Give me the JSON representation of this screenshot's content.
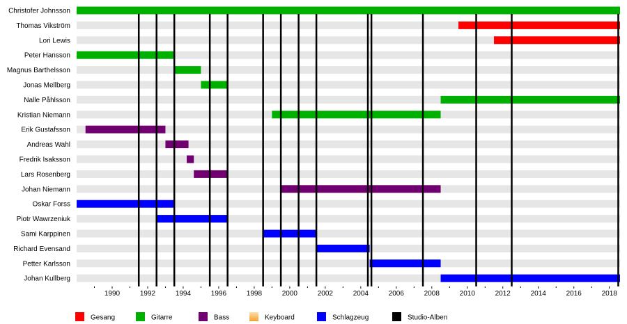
{
  "chart_data": {
    "type": "timeline",
    "xlim": [
      1988.0,
      2018.6
    ],
    "x_ticks": [
      "1990",
      "1992",
      "1994",
      "1996",
      "1998",
      "2000",
      "2002",
      "2004",
      "2006",
      "2008",
      "2010",
      "2012",
      "2014",
      "2016",
      "2018"
    ],
    "roles": [
      {
        "key": "gesang",
        "label": "Gesang",
        "color": "#ff0000"
      },
      {
        "key": "gitarre",
        "label": "Gitarre",
        "color": "#00b000"
      },
      {
        "key": "bass",
        "label": "Bass",
        "color": "#700070"
      },
      {
        "key": "keyboard",
        "label": "Keyboard",
        "color": "#f4a030"
      },
      {
        "key": "schlagzeug",
        "label": "Schlagzeug",
        "color": "#0000ff"
      },
      {
        "key": "studio_alben",
        "label": "Studio-Alben",
        "color": "#000000"
      }
    ],
    "members": [
      {
        "name": "Christofer Johnsson",
        "periods": [
          {
            "role": "gitarre",
            "start": 1988.0,
            "end": 2018.6
          }
        ]
      },
      {
        "name": "Thomas Vikström",
        "periods": [
          {
            "role": "gesang",
            "start": 2009.5,
            "end": 2018.6
          }
        ]
      },
      {
        "name": "Lori Lewis",
        "periods": [
          {
            "role": "gesang",
            "start": 2011.5,
            "end": 2018.6
          }
        ]
      },
      {
        "name": "Peter Hansson",
        "periods": [
          {
            "role": "gitarre",
            "start": 1988.0,
            "end": 1993.5
          }
        ]
      },
      {
        "name": "Magnus Barthelsson",
        "periods": [
          {
            "role": "gitarre",
            "start": 1993.5,
            "end": 1995.0
          }
        ]
      },
      {
        "name": "Jonas Mellberg",
        "periods": [
          {
            "role": "gitarre",
            "start": 1995.0,
            "end": 1996.5
          }
        ]
      },
      {
        "name": "Nalle Påhlsson",
        "periods": [
          {
            "role": "gitarre",
            "start": 2008.5,
            "end": 2018.6
          }
        ]
      },
      {
        "name": "Kristian Niemann",
        "periods": [
          {
            "role": "gitarre",
            "start": 1999.0,
            "end": 2008.5
          }
        ]
      },
      {
        "name": "Erik Gustafsson",
        "periods": [
          {
            "role": "bass",
            "start": 1988.5,
            "end": 1993.0
          }
        ]
      },
      {
        "name": "Andreas Wahl",
        "periods": [
          {
            "role": "bass",
            "start": 1993.0,
            "end": 1994.3
          }
        ]
      },
      {
        "name": "Fredrik Isaksson",
        "periods": [
          {
            "role": "bass",
            "start": 1994.2,
            "end": 1994.6
          }
        ]
      },
      {
        "name": "Lars Rosenberg",
        "periods": [
          {
            "role": "bass",
            "start": 1994.6,
            "end": 1996.5
          }
        ]
      },
      {
        "name": "Johan Niemann",
        "periods": [
          {
            "role": "bass",
            "start": 1999.5,
            "end": 2008.5
          }
        ]
      },
      {
        "name": "Oskar Forss",
        "periods": [
          {
            "role": "schlagzeug",
            "start": 1988.0,
            "end": 1993.5
          }
        ]
      },
      {
        "name": "Piotr Wawrzeniuk",
        "periods": [
          {
            "role": "schlagzeug",
            "start": 1992.5,
            "end": 1996.5
          }
        ]
      },
      {
        "name": "Sami Karppinen",
        "periods": [
          {
            "role": "schlagzeug",
            "start": 1998.5,
            "end": 2001.5
          }
        ]
      },
      {
        "name": "Richard Evensand",
        "periods": [
          {
            "role": "schlagzeug",
            "start": 2001.5,
            "end": 2004.5
          }
        ]
      },
      {
        "name": "Petter Karlsson",
        "periods": [
          {
            "role": "schlagzeug",
            "start": 2004.5,
            "end": 2008.5
          }
        ]
      },
      {
        "name": "Johan Kullberg",
        "periods": [
          {
            "role": "schlagzeug",
            "start": 2008.5,
            "end": 2018.6
          }
        ]
      }
    ],
    "studio_albums": [
      1991.5,
      1992.5,
      1993.5,
      1995.5,
      1996.5,
      1998.5,
      1999.5,
      2000.5,
      2001.5,
      2004.4,
      2004.6,
      2007.5,
      2010.5,
      2012.5,
      2018.5
    ]
  }
}
